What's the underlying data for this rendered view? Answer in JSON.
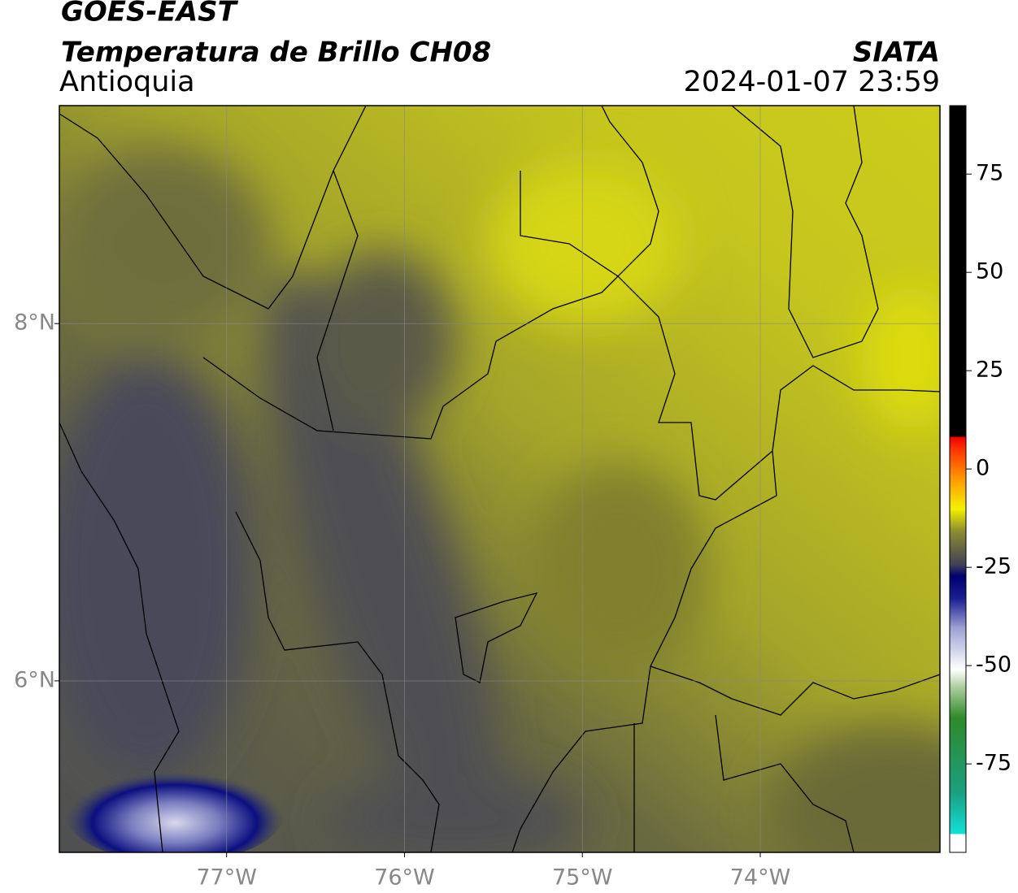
{
  "header": {
    "title": "GOES-EAST",
    "subtitle": "Temperatura de Brillo CH08",
    "region": "Antioquia",
    "source": "SIATA",
    "timestamp": "2024-01-07 23:59"
  },
  "map": {
    "xlim": [
      -77.94,
      -72.99
    ],
    "ylim": [
      5.04,
      9.22
    ],
    "xticks": [
      {
        "value": -77,
        "label": "77°W"
      },
      {
        "value": -76,
        "label": "76°W"
      },
      {
        "value": -75,
        "label": "75°W"
      },
      {
        "value": -74,
        "label": "74°W"
      }
    ],
    "yticks": [
      {
        "value": 6,
        "label": "6°N"
      },
      {
        "value": 8,
        "label": "8°N"
      }
    ],
    "grid": true
  },
  "colorbar": {
    "lim": [
      -97.5,
      92.4
    ],
    "ticks": [
      75,
      50,
      25,
      0,
      -25,
      -50,
      -75
    ]
  }
}
